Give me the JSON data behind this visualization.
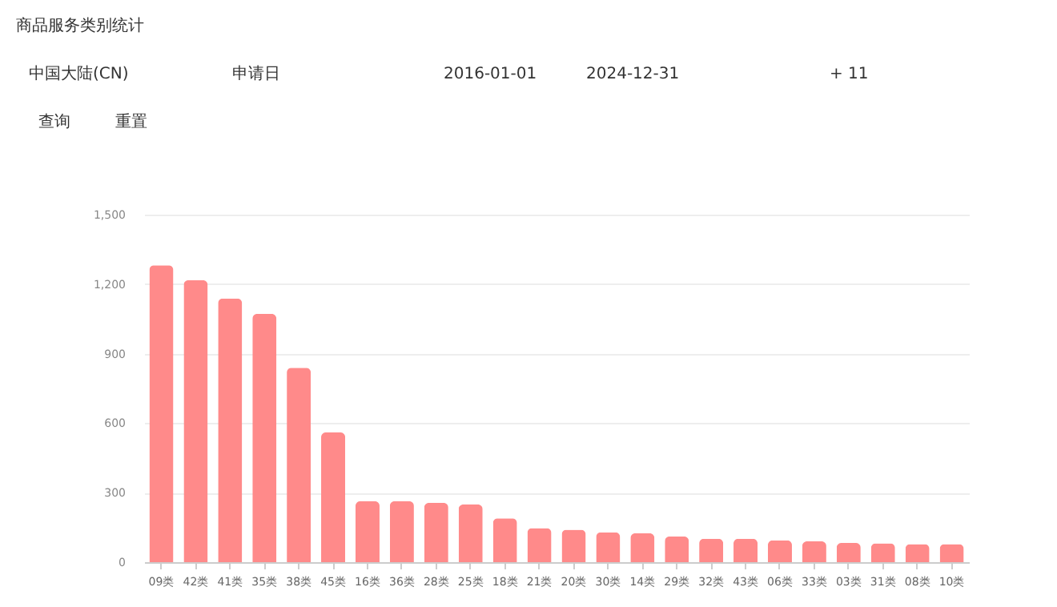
{
  "chart_data": {
    "type": "bar",
    "title": "商品服务类别统计",
    "annotations": [
      "中国大陆(CN)",
      "申请日",
      "2016-01-01",
      "2024-12-31",
      "+ 11",
      "查询",
      "重置"
    ],
    "categories": [
      "09类",
      "42类",
      "41类",
      "35类",
      "38类",
      "45类",
      "16类",
      "36类",
      "28类",
      "25类",
      "18类",
      "21类",
      "20类",
      "30类",
      "14类",
      "29类",
      "32类",
      "43类",
      "06类",
      "33类",
      "03类",
      "31类",
      "08类",
      "10类"
    ],
    "values": [
      1281,
      1217,
      1138,
      1071,
      839,
      560,
      263,
      263,
      256,
      249,
      189,
      147,
      140,
      129,
      124,
      111,
      101,
      101,
      94,
      90,
      83,
      81,
      78,
      78
    ],
    "color": "#ff8a8a",
    "ylim": [
      0,
      1500
    ],
    "yticks": [
      0,
      300,
      600,
      900,
      {
        "value": 1200,
        "label": "1,200"
      },
      {
        "value": 1500,
        "label": "1,500"
      }
    ],
    "grid": "y"
  }
}
